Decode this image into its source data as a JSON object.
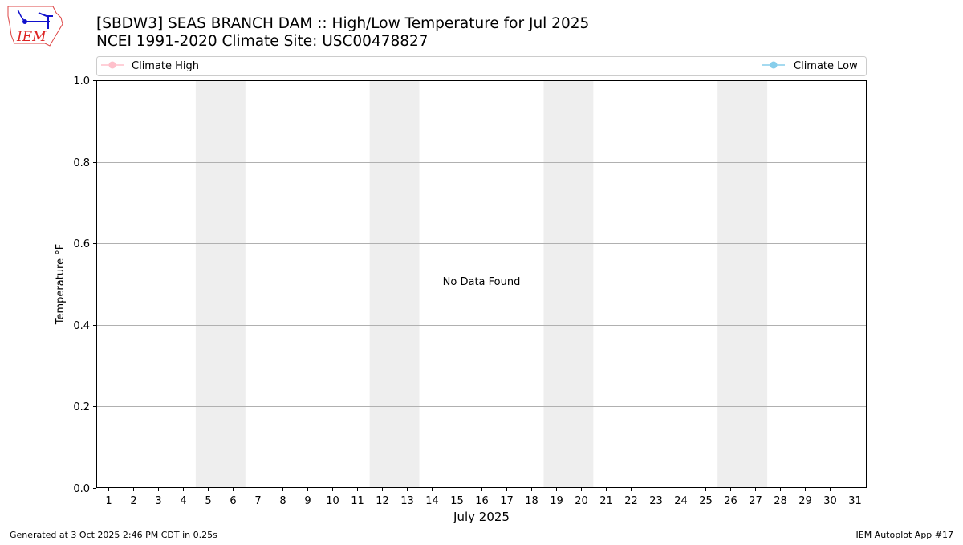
{
  "header": {
    "title_line1": "[SBDW3] SEAS BRANCH DAM :: High/Low Temperature for Jul 2025",
    "title_line2": "NCEI 1991-2020 Climate Site: USC00478827",
    "logo_text": "IEM"
  },
  "footer": {
    "generated": "Generated at 3 Oct 2025 2:46 PM CDT in 0.25s",
    "app": "IEM Autoplot App #17"
  },
  "chart_data": {
    "type": "line",
    "xlabel": "July 2025",
    "ylabel": "Temperature °F",
    "xlim": [
      0.5,
      31.5
    ],
    "ylim": [
      0,
      1
    ],
    "x_ticks": [
      "1",
      "2",
      "3",
      "4",
      "5",
      "6",
      "7",
      "8",
      "9",
      "10",
      "11",
      "12",
      "13",
      "14",
      "15",
      "16",
      "17",
      "18",
      "19",
      "20",
      "21",
      "22",
      "23",
      "24",
      "25",
      "26",
      "27",
      "28",
      "29",
      "30",
      "31"
    ],
    "y_ticks": [
      "0.0",
      "0.2",
      "0.4",
      "0.6",
      "0.8",
      "1.0"
    ],
    "grid": "horizontal",
    "weekend_shading": [
      [
        4.5,
        6.5
      ],
      [
        11.5,
        13.5
      ],
      [
        18.5,
        20.5
      ],
      [
        25.5,
        27.5
      ]
    ],
    "annotation": "No Data Found",
    "legend_placement": "top",
    "series": [
      {
        "name": "Climate High",
        "color": "#ffc0cb",
        "values": []
      },
      {
        "name": "Climate Low",
        "color": "#87ceeb",
        "values": []
      }
    ],
    "shading_color": "#eeeeee"
  }
}
